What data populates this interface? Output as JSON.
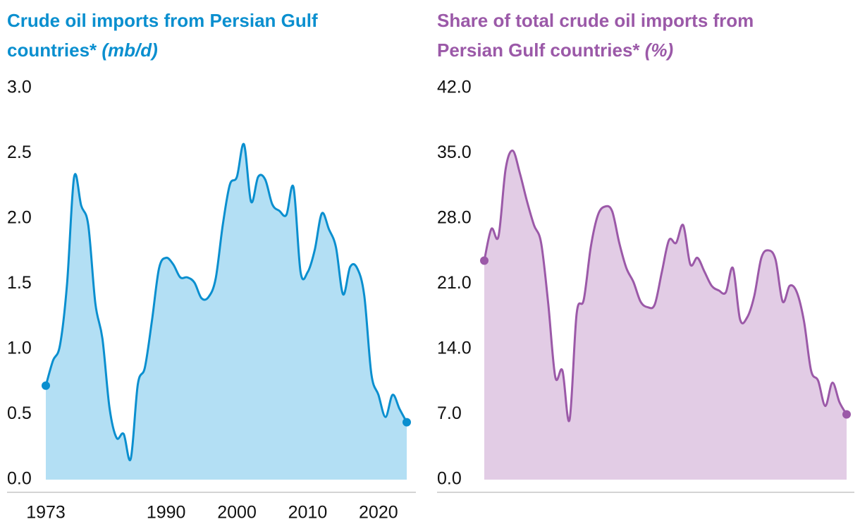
{
  "chart_data": [
    {
      "type": "area",
      "title": "Crude oil imports from Persian Gulf countries*",
      "units": "(mb/d)",
      "color": "#0a8fcf",
      "fill": "#b3dff4",
      "x": [
        1973,
        1974,
        1975,
        1976,
        1977,
        1978,
        1979,
        1980,
        1981,
        1982,
        1983,
        1984,
        1985,
        1986,
        1987,
        1988,
        1989,
        1990,
        1991,
        1992,
        1993,
        1994,
        1995,
        1996,
        1997,
        1998,
        1999,
        2000,
        2001,
        2002,
        2003,
        2004,
        2005,
        2006,
        2007,
        2008,
        2009,
        2010,
        2011,
        2012,
        2013,
        2014,
        2015,
        2016,
        2017,
        2018,
        2019,
        2020,
        2021,
        2022,
        2023,
        2024
      ],
      "values": [
        0.72,
        0.91,
        1.03,
        1.5,
        2.32,
        2.1,
        1.95,
        1.35,
        1.08,
        0.55,
        0.32,
        0.35,
        0.16,
        0.73,
        0.86,
        1.22,
        1.62,
        1.7,
        1.65,
        1.55,
        1.55,
        1.51,
        1.39,
        1.4,
        1.54,
        1.95,
        2.26,
        2.32,
        2.57,
        2.13,
        2.32,
        2.3,
        2.11,
        2.06,
        2.03,
        2.24,
        1.59,
        1.59,
        1.76,
        2.04,
        1.92,
        1.78,
        1.42,
        1.63,
        1.62,
        1.41,
        0.81,
        0.65,
        0.48,
        0.65,
        0.54,
        0.44
      ],
      "xlim": [
        1973,
        2024
      ],
      "xticks": [
        1973,
        1990,
        2000,
        2010,
        2020
      ],
      "ylim": [
        0,
        3
      ],
      "yticks": [
        {
          "value": 0,
          "label": "0.0"
        },
        {
          "value": 0.5,
          "label": "0.5"
        },
        {
          "value": 1,
          "label": "1.0"
        },
        {
          "value": 1.5,
          "label": "1.5"
        },
        {
          "value": 2,
          "label": "2.0"
        },
        {
          "value": 2.5,
          "label": "2.5"
        },
        {
          "value": 3,
          "label": "3.0"
        }
      ]
    },
    {
      "type": "area",
      "title": "Share of total crude oil imports from Persian Gulf countries*",
      "units": "(%)",
      "color": "#9b59a8",
      "fill": "#e2cce5",
      "x": [
        1973,
        1974,
        1975,
        1976,
        1977,
        1978,
        1979,
        1980,
        1981,
        1982,
        1983,
        1984,
        1985,
        1986,
        1987,
        1988,
        1989,
        1990,
        1991,
        1992,
        1993,
        1994,
        1995,
        1996,
        1997,
        1998,
        1999,
        2000,
        2001,
        2002,
        2003,
        2004,
        2005,
        2006,
        2007,
        2008,
        2009,
        2010,
        2011,
        2012,
        2013,
        2014,
        2015,
        2016,
        2017,
        2018,
        2019,
        2020,
        2021,
        2022,
        2023,
        2024
      ],
      "values": [
        23.5,
        26.9,
        26.1,
        33.3,
        35.3,
        32.9,
        29.9,
        27.3,
        25.4,
        18.9,
        11.0,
        11.7,
        6.4,
        17.8,
        19.3,
        25.0,
        28.4,
        29.3,
        28.8,
        25.4,
        22.7,
        21.2,
        19.1,
        18.5,
        18.8,
        22.3,
        25.7,
        25.4,
        27.3,
        23.1,
        23.8,
        22.3,
        20.8,
        20.3,
        20.1,
        22.7,
        17.2,
        17.4,
        19.7,
        23.8,
        24.6,
        23.6,
        19.1,
        20.8,
        20.1,
        17.0,
        11.7,
        10.6,
        7.9,
        10.4,
        8.3,
        7.0
      ],
      "xlim": [
        1973,
        2024
      ],
      "ylim": [
        0,
        42
      ],
      "yticks": [
        {
          "value": 0,
          "label": "0.0"
        },
        {
          "value": 7,
          "label": "7.0"
        },
        {
          "value": 14,
          "label": "14.0"
        },
        {
          "value": 21,
          "label": "21.0"
        },
        {
          "value": 28,
          "label": "28.0"
        },
        {
          "value": 35,
          "label": "35.0"
        },
        {
          "value": 42,
          "label": "42.0"
        }
      ]
    }
  ]
}
